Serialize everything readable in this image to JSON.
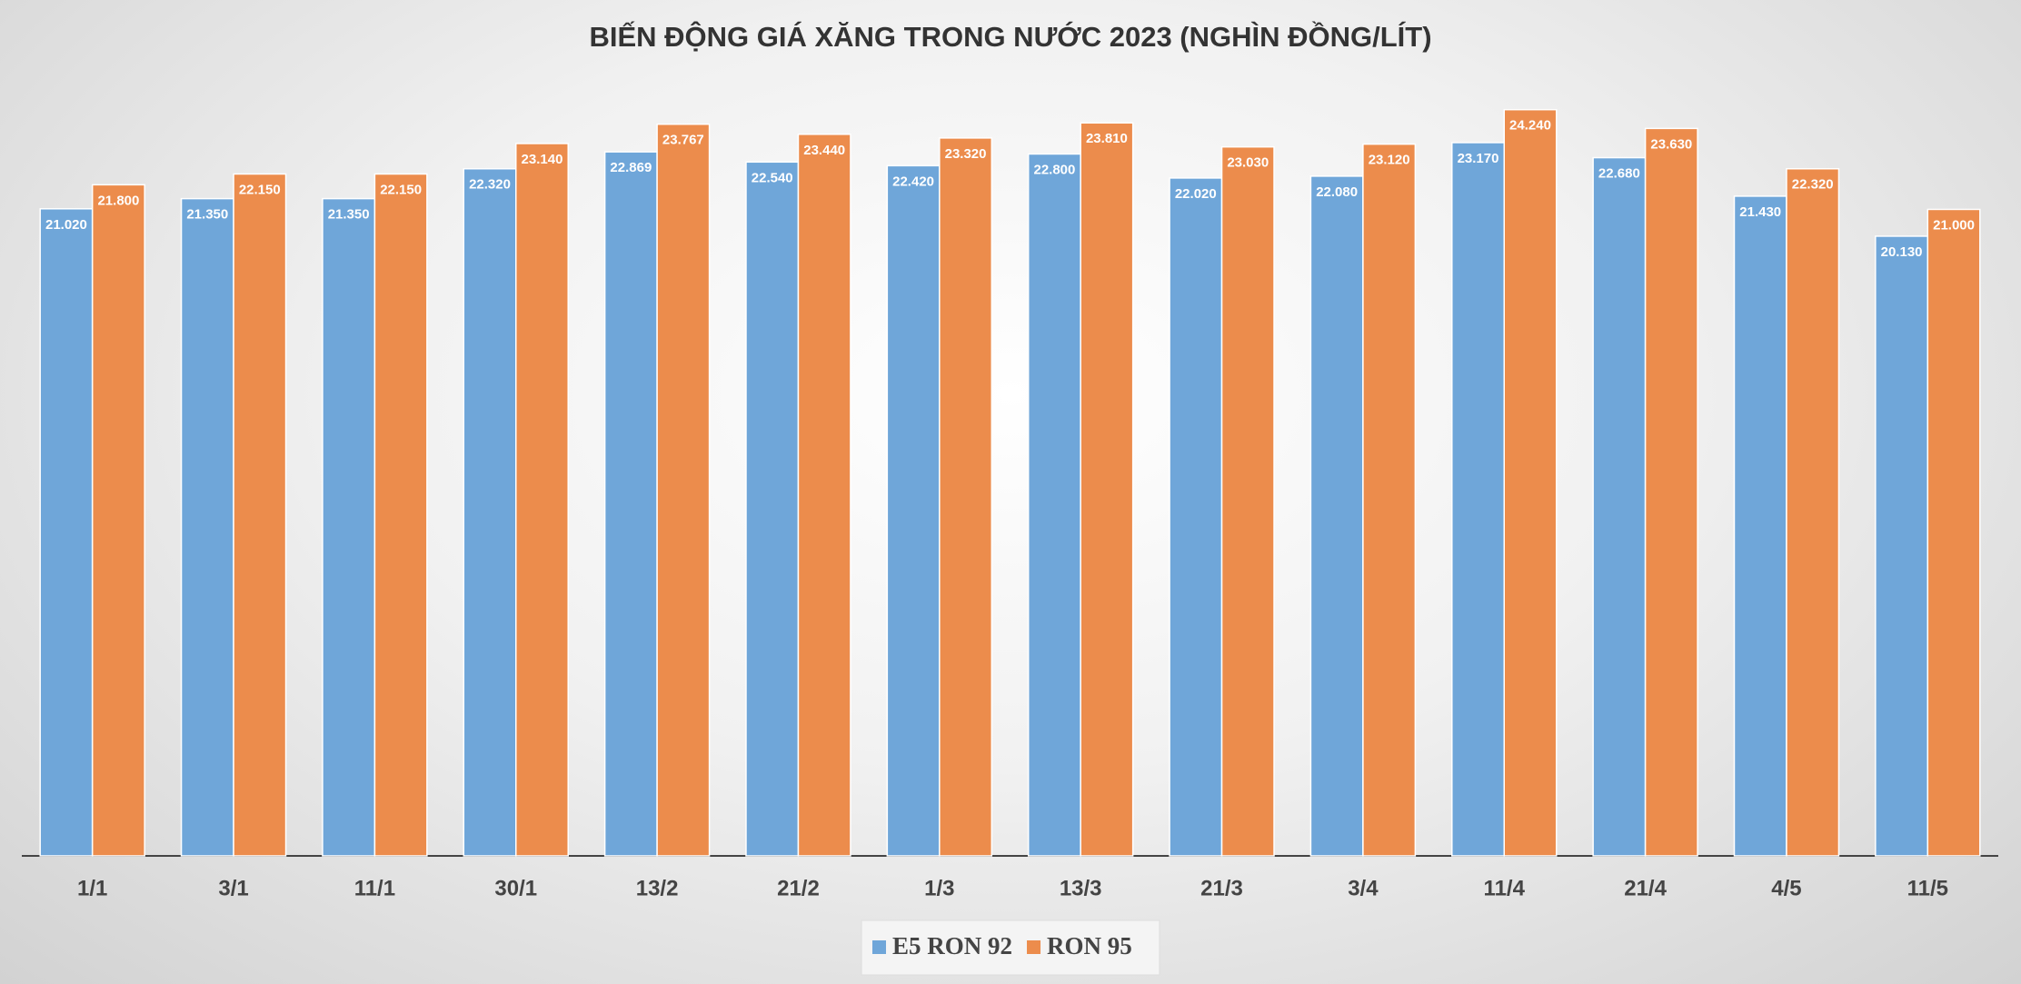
{
  "chart_data": {
    "type": "bar",
    "title": "BIẾN ĐỘNG GIÁ XĂNG TRONG NƯỚC 2023 (NGHÌN ĐỒNG/LÍT)",
    "categories": [
      "1/1",
      "3/1",
      "11/1",
      "30/1",
      "13/2",
      "21/2",
      "1/3",
      "13/3",
      "21/3",
      "3/4",
      "11/4",
      "21/4",
      "4/5",
      "11/5"
    ],
    "series": [
      {
        "name": "E5 RON 92",
        "color": "#6fa6d9",
        "values": [
          21020,
          21350,
          21350,
          22320,
          22869,
          22540,
          22420,
          22800,
          22020,
          22080,
          23170,
          22680,
          21430,
          20130
        ],
        "value_labels": [
          "21.020",
          "21.350",
          "21.350",
          "22.320",
          "22.869",
          "22.540",
          "22.420",
          "22.800",
          "22.020",
          "22.080",
          "23.170",
          "22.680",
          "21.430",
          "20.130"
        ]
      },
      {
        "name": "RON 95",
        "color": "#ec8c4c",
        "values": [
          21800,
          22150,
          22150,
          23140,
          23767,
          23440,
          23320,
          23810,
          23030,
          23120,
          24240,
          23630,
          22320,
          21000
        ],
        "value_labels": [
          "21.800",
          "22.150",
          "22.150",
          "23.140",
          "23.767",
          "23.440",
          "23.320",
          "23.810",
          "23.030",
          "23.120",
          "24.240",
          "23.630",
          "22.320",
          "21.000"
        ]
      }
    ],
    "ylim": [
      0,
      25500
    ],
    "legend": "bottom"
  }
}
